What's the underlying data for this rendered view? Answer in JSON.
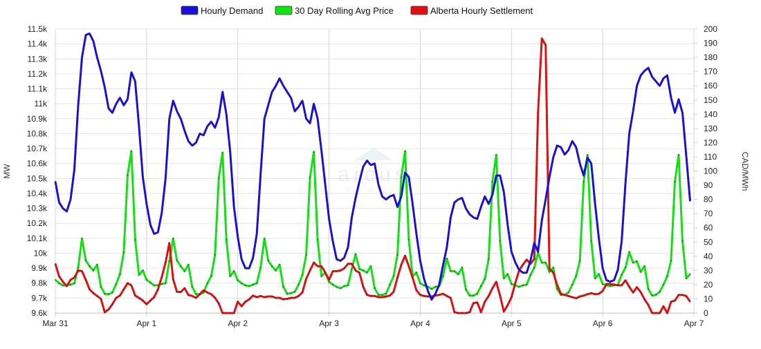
{
  "chart_data": {
    "type": "line",
    "title": "",
    "legend": {
      "placement": "top-center"
    },
    "x_start_label": "Mar 31",
    "x_unit": "hour",
    "x_tick_labels": [
      "Mar 31",
      "Apr 1",
      "Apr 2",
      "Apr 3",
      "Apr 4",
      "Apr 5",
      "Apr 6",
      "Apr 7"
    ],
    "x_range_hours": [
      0,
      168
    ],
    "left_axis": {
      "label": "MW",
      "ylim": [
        9600,
        11500
      ],
      "ticks": [
        "9.6k",
        "9.7k",
        "9.8k",
        "9.9k",
        "10k",
        "10.1k",
        "10.2k",
        "10.3k",
        "10.4k",
        "10.5k",
        "10.6k",
        "10.7k",
        "10.8k",
        "10.9k",
        "11k",
        "11.1k",
        "11.2k",
        "11.3k",
        "11.4k",
        "11.5k"
      ]
    },
    "right_axis": {
      "label": "CAD/MWh",
      "ylim": [
        0,
        200
      ],
      "ticks": [
        "0",
        "10",
        "20",
        "30",
        "40",
        "50",
        "60",
        "70",
        "80",
        "90",
        "100",
        "110",
        "120",
        "130",
        "140",
        "150",
        "160",
        "170",
        "180",
        "190",
        "200"
      ]
    },
    "grid": true,
    "series": [
      {
        "name": "Hourly Demand",
        "axis": "left",
        "color": "#1a0fd6",
        "values_k": [
          10.48,
          10.34,
          10.3,
          10.28,
          10.36,
          10.56,
          10.99,
          11.31,
          11.46,
          11.47,
          11.42,
          11.31,
          11.22,
          11.11,
          10.97,
          10.94,
          11.0,
          11.04,
          10.99,
          11.03,
          11.21,
          11.15,
          10.85,
          10.51,
          10.33,
          10.19,
          10.13,
          10.14,
          10.27,
          10.5,
          10.9,
          11.02,
          10.95,
          10.9,
          10.82,
          10.75,
          10.72,
          10.74,
          10.8,
          10.79,
          10.85,
          10.88,
          10.84,
          10.91,
          11.08,
          10.93,
          10.68,
          10.31,
          10.11,
          9.96,
          9.9,
          9.9,
          9.97,
          10.13,
          10.53,
          10.9,
          10.99,
          11.08,
          11.12,
          11.17,
          11.12,
          11.08,
          11.04,
          10.95,
          10.98,
          11.02,
          10.9,
          10.87,
          11.0,
          10.9,
          10.69,
          10.46,
          10.23,
          10.08,
          9.96,
          9.95,
          9.97,
          10.04,
          10.24,
          10.37,
          10.48,
          10.58,
          10.62,
          10.59,
          10.6,
          10.46,
          10.38,
          10.36,
          10.38,
          10.39,
          10.31,
          10.38,
          10.54,
          10.51,
          10.33,
          10.13,
          9.95,
          9.83,
          9.75,
          9.69,
          9.73,
          9.79,
          9.92,
          10.04,
          10.24,
          10.34,
          10.36,
          10.37,
          10.3,
          10.26,
          10.24,
          10.23,
          10.31,
          10.38,
          10.33,
          10.39,
          10.52,
          10.52,
          10.41,
          10.19,
          10.01,
          9.94,
          9.89,
          9.87,
          9.87,
          9.95,
          10.07,
          10.01,
          10.22,
          10.36,
          10.51,
          10.64,
          10.72,
          10.71,
          10.66,
          10.69,
          10.75,
          10.71,
          10.6,
          10.52,
          10.64,
          10.6,
          10.33,
          10.1,
          9.9,
          9.82,
          9.81,
          9.82,
          9.89,
          10.08,
          10.47,
          10.8,
          10.95,
          11.12,
          11.19,
          11.22,
          11.24,
          11.18,
          11.15,
          11.12,
          11.17,
          11.19,
          11.04,
          10.94,
          11.03,
          10.94,
          10.65,
          10.35
        ]
      },
      {
        "name": "30 Day Rolling Avg Price",
        "axis": "right",
        "color": "#13e013",
        "values": [
          23.4,
          21,
          19.5,
          19.5,
          20,
          21,
          32,
          52.5,
          37,
          33,
          30,
          34,
          18.5,
          13.6,
          13.3,
          14.5,
          20.5,
          27.4,
          42.8,
          97,
          114,
          51.7,
          26.8,
          30,
          23.4,
          21.5,
          19.5,
          19.5,
          20.5,
          21,
          36.5,
          52.5,
          37,
          33,
          29.5,
          34,
          18.5,
          13.3,
          13.3,
          14.5,
          21,
          26,
          41,
          95,
          113,
          51.7,
          26,
          29.5,
          23,
          21,
          19.5,
          19,
          20,
          21,
          32,
          52.5,
          37,
          33,
          30,
          34,
          18.5,
          13.6,
          14,
          15,
          20,
          26.8,
          41,
          95.5,
          113.5,
          51.7,
          26,
          28.5,
          22,
          20,
          18.5,
          17.5,
          19,
          19.5,
          30.9,
          41.5,
          31,
          30,
          28.5,
          33,
          17.5,
          12.8,
          12.8,
          13.6,
          20,
          26,
          41,
          95.5,
          114,
          51.7,
          26,
          28.5,
          21,
          19.5,
          18.5,
          17,
          18.5,
          19,
          26,
          38.4,
          29.5,
          29.5,
          27.4,
          32,
          16.7,
          12.3,
          12.3,
          13.6,
          19,
          24,
          38,
          92.5,
          111.4,
          50.6,
          24.5,
          27.4,
          20.5,
          19.5,
          18.5,
          19.5,
          20,
          26.8,
          32,
          42.5,
          35.5,
          35.5,
          29,
          32,
          17,
          12.8,
          12.8,
          14.5,
          20,
          26,
          37,
          92.5,
          111.4,
          50.6,
          24.5,
          27.4,
          20.5,
          19.5,
          19,
          19.5,
          20,
          27,
          32,
          43,
          35.5,
          36.5,
          29,
          33,
          17,
          12.3,
          12.8,
          15,
          20,
          26,
          37,
          92.5,
          111.4,
          50.6,
          24.5,
          27.4
        ]
      },
      {
        "name": "Alberta Hourly Settlement",
        "axis": "right",
        "color": "#e01010",
        "values": [
          34.7,
          25.8,
          22,
          19,
          23.4,
          25,
          30,
          29.5,
          23.4,
          16.7,
          14,
          12,
          10,
          0.6,
          2.5,
          6.3,
          10.7,
          12.3,
          16.7,
          21,
          19.5,
          12.3,
          10.7,
          8.8,
          6.3,
          8.8,
          11.2,
          16.7,
          25.3,
          35.5,
          49.3,
          23.7,
          15,
          14.8,
          17.5,
          12.8,
          12,
          10.7,
          13.3,
          16,
          14.5,
          13.3,
          10.7,
          6.8,
          0,
          0,
          0,
          0,
          8,
          4.8,
          8,
          9.7,
          12.3,
          11.2,
          12,
          11.2,
          11.7,
          11.7,
          10.7,
          10.7,
          9.7,
          10,
          10.7,
          10.7,
          12,
          14.5,
          24.3,
          30,
          35.5,
          33,
          33,
          28.5,
          23.4,
          29.5,
          29.5,
          30,
          31.5,
          34.7,
          34.7,
          30,
          28.5,
          18.5,
          12.8,
          12,
          12,
          11.2,
          11.2,
          11.7,
          12.3,
          15,
          25,
          34,
          40.4,
          33,
          25,
          16,
          12.8,
          12,
          11.7,
          11.7,
          12.3,
          12.8,
          13.6,
          12,
          10.7,
          0.6,
          0,
          0,
          0,
          0.6,
          7,
          7.5,
          0.6,
          8,
          12,
          17.5,
          22,
          12.3,
          1,
          5.5,
          11.2,
          21,
          30,
          34,
          37.6,
          34.7,
          38,
          141,
          193.3,
          188.8,
          31,
          28.5,
          20,
          13.6,
          12.8,
          12,
          11.2,
          10.4,
          11.7,
          12.3,
          13.3,
          14,
          13.3,
          13.6,
          15.5,
          20.5,
          20.5,
          20,
          19.5,
          19.5,
          23,
          18.5,
          14.5,
          18.2,
          14.8,
          9.7,
          5.8,
          0,
          0,
          0,
          4.8,
          0,
          8,
          8.8,
          12.8,
          12.8,
          12,
          8
        ]
      }
    ]
  },
  "watermark": {
    "logo_text": "arcus",
    "sub_text": "POWER"
  }
}
